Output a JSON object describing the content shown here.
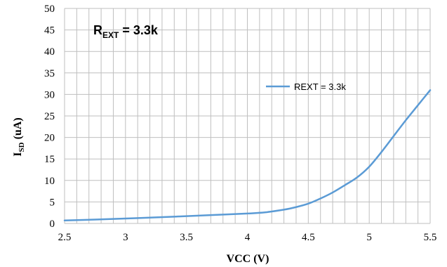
{
  "chart_data": {
    "type": "line",
    "xlabel": "VCC (V)",
    "ylabel_main": "I",
    "ylabel_sub": "SD",
    "ylabel_unit": " (uA)",
    "xlim": [
      2.5,
      5.5
    ],
    "ylim": [
      0,
      50
    ],
    "xticks": [
      "2.5",
      "3",
      "3.5",
      "4",
      "4.5",
      "5",
      "5.5"
    ],
    "xtick_values": [
      2.5,
      3,
      3.5,
      4,
      4.5,
      5,
      5.5
    ],
    "yticks": [
      "0",
      "5",
      "10",
      "15",
      "20",
      "25",
      "30",
      "35",
      "40",
      "45",
      "50"
    ],
    "ytick_values": [
      0,
      5,
      10,
      15,
      20,
      25,
      30,
      35,
      40,
      45,
      50
    ],
    "grid": true,
    "legend_placement": "right",
    "annotation": {
      "main": "R",
      "sub": "EXT",
      "rest": " = 3.3k"
    },
    "series": [
      {
        "name": "REXT = 3.3k",
        "color": "#5b9bd5",
        "x": [
          2.5,
          2.75,
          3.0,
          3.25,
          3.5,
          3.75,
          4.0,
          4.15,
          4.3,
          4.4,
          4.5,
          4.6,
          4.7,
          4.8,
          4.9,
          5.0,
          5.1,
          5.2,
          5.3,
          5.4,
          5.5
        ],
        "y": [
          0.7,
          0.9,
          1.15,
          1.4,
          1.7,
          2.0,
          2.3,
          2.6,
          3.2,
          3.8,
          4.6,
          5.8,
          7.2,
          8.9,
          10.7,
          13.2,
          16.6,
          20.3,
          24.0,
          27.5,
          31.0
        ]
      }
    ]
  }
}
